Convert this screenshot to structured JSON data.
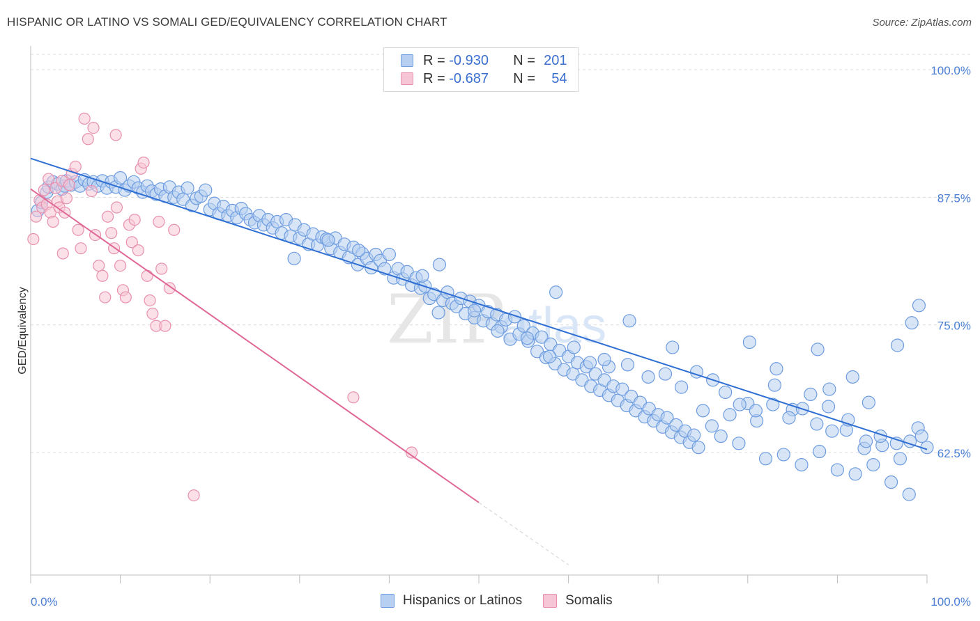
{
  "header": {
    "title": "HISPANIC OR LATINO VS SOMALI GED/EQUIVALENCY CORRELATION CHART",
    "source": "Source: ZipAtlas.com"
  },
  "legend": {
    "r_label": "R =",
    "n_label": "N =",
    "series": [
      {
        "name": "Hispanics or Latinos",
        "r": "-0.930",
        "n": "201",
        "fill": "#b7cff0",
        "stroke": "#6d9ce0"
      },
      {
        "name": "Somalis",
        "r": "-0.687",
        "n": "54",
        "fill": "#f7c6d6",
        "stroke": "#e891ae"
      }
    ]
  },
  "watermark": {
    "zip": "ZIP",
    "atlas": "atlas"
  },
  "colors": {
    "blue_line": "#2f6fd3",
    "pink_line": "#e06896",
    "grid": "#dcdcdc",
    "tick_text": "#4a7fd6"
  },
  "chart_data": {
    "type": "scatter",
    "title": "HISPANIC OR LATINO VS SOMALI GED/EQUIVALENCY CORRELATION CHART",
    "xlabel": "",
    "ylabel": "GED/Equivalency",
    "xlim": [
      0,
      100
    ],
    "ylim": [
      50.5,
      101.5
    ],
    "x_tick_labels": [
      "0.0%",
      "100.0%"
    ],
    "y_ticks": [
      100.0,
      87.5,
      75.0,
      62.5
    ],
    "y_tick_labels": [
      "100.0%",
      "87.5%",
      "75.0%",
      "62.5%"
    ],
    "grid": true,
    "legend_position": "top-center",
    "series": [
      {
        "name": "Hispanics or Latinos",
        "color": "#6d9ce0",
        "trend": {
          "x": [
            0,
            100
          ],
          "y": [
            91.3,
            62.8
          ]
        },
        "points": [
          [
            0.8,
            86.2
          ],
          [
            1.2,
            87.0
          ],
          [
            1.8,
            88.0
          ],
          [
            2.0,
            88.5
          ],
          [
            2.5,
            89.0
          ],
          [
            3.0,
            88.8
          ],
          [
            3.5,
            88.3
          ],
          [
            3.8,
            88.6
          ],
          [
            4.0,
            89.1
          ],
          [
            4.5,
            88.7
          ],
          [
            5.0,
            89.0
          ],
          [
            5.5,
            88.6
          ],
          [
            6.0,
            89.2
          ],
          [
            6.5,
            88.8
          ],
          [
            7.0,
            89.0
          ],
          [
            7.5,
            88.6
          ],
          [
            8.0,
            89.1
          ],
          [
            8.5,
            88.4
          ],
          [
            9.0,
            89.0
          ],
          [
            9.5,
            88.5
          ],
          [
            10.0,
            89.4
          ],
          [
            10.5,
            88.2
          ],
          [
            11.0,
            88.6
          ],
          [
            11.5,
            89.0
          ],
          [
            12.0,
            88.4
          ],
          [
            12.5,
            88.0
          ],
          [
            13.0,
            88.6
          ],
          [
            13.5,
            88.1
          ],
          [
            14.0,
            87.8
          ],
          [
            14.5,
            88.3
          ],
          [
            15.0,
            87.6
          ],
          [
            15.5,
            88.5
          ],
          [
            16.0,
            87.5
          ],
          [
            16.5,
            88.0
          ],
          [
            17.0,
            87.3
          ],
          [
            17.5,
            88.4
          ],
          [
            18.0,
            86.7
          ],
          [
            18.5,
            87.4
          ],
          [
            19.0,
            87.6
          ],
          [
            19.5,
            88.2
          ],
          [
            20.0,
            86.3
          ],
          [
            20.5,
            86.9
          ],
          [
            21.0,
            85.9
          ],
          [
            21.5,
            86.6
          ],
          [
            22.0,
            85.7
          ],
          [
            22.5,
            86.2
          ],
          [
            23.0,
            85.5
          ],
          [
            23.5,
            86.4
          ],
          [
            24.0,
            85.9
          ],
          [
            24.5,
            85.3
          ],
          [
            25.0,
            85.0
          ],
          [
            25.5,
            85.7
          ],
          [
            26.0,
            84.8
          ],
          [
            26.5,
            85.3
          ],
          [
            27.0,
            84.5
          ],
          [
            27.5,
            85.1
          ],
          [
            28.0,
            84.0
          ],
          [
            28.5,
            85.3
          ],
          [
            29.0,
            83.7
          ],
          [
            29.5,
            84.8
          ],
          [
            30.0,
            83.5
          ],
          [
            30.5,
            84.3
          ],
          [
            31.0,
            82.9
          ],
          [
            31.5,
            83.9
          ],
          [
            32.0,
            82.8
          ],
          [
            32.5,
            83.6
          ],
          [
            33.0,
            83.4
          ],
          [
            33.5,
            82.5
          ],
          [
            34.0,
            83.5
          ],
          [
            34.5,
            82.1
          ],
          [
            35.0,
            82.9
          ],
          [
            35.5,
            81.6
          ],
          [
            36.0,
            82.6
          ],
          [
            36.5,
            80.9
          ],
          [
            37.0,
            82.0
          ],
          [
            37.5,
            81.5
          ],
          [
            38.0,
            80.6
          ],
          [
            38.5,
            81.9
          ],
          [
            39.0,
            81.3
          ],
          [
            39.5,
            80.5
          ],
          [
            40.0,
            81.9
          ],
          [
            40.5,
            79.6
          ],
          [
            41.0,
            80.5
          ],
          [
            41.5,
            79.5
          ],
          [
            42.0,
            80.2
          ],
          [
            42.5,
            78.9
          ],
          [
            43.0,
            79.6
          ],
          [
            43.5,
            78.6
          ],
          [
            44.0,
            78.8
          ],
          [
            44.5,
            77.6
          ],
          [
            45.0,
            78.0
          ],
          [
            45.5,
            76.2
          ],
          [
            46.0,
            77.4
          ],
          [
            46.5,
            78.2
          ],
          [
            47.0,
            77.1
          ],
          [
            47.5,
            76.8
          ],
          [
            48.0,
            77.6
          ],
          [
            48.5,
            76.1
          ],
          [
            49.0,
            77.3
          ],
          [
            49.5,
            75.7
          ],
          [
            50.0,
            76.9
          ],
          [
            50.5,
            75.4
          ],
          [
            51.0,
            76.3
          ],
          [
            51.5,
            75.1
          ],
          [
            52.0,
            76.0
          ],
          [
            52.5,
            74.8
          ],
          [
            53.0,
            75.5
          ],
          [
            53.5,
            73.6
          ],
          [
            54.0,
            75.8
          ],
          [
            54.5,
            74.1
          ],
          [
            55.0,
            74.9
          ],
          [
            55.5,
            73.4
          ],
          [
            56.0,
            74.2
          ],
          [
            56.5,
            72.4
          ],
          [
            57.0,
            73.8
          ],
          [
            57.5,
            71.8
          ],
          [
            58.0,
            73.1
          ],
          [
            58.5,
            71.2
          ],
          [
            59.0,
            72.5
          ],
          [
            59.5,
            70.6
          ],
          [
            60.0,
            71.9
          ],
          [
            60.5,
            70.2
          ],
          [
            61.0,
            71.3
          ],
          [
            61.5,
            69.6
          ],
          [
            62.0,
            70.9
          ],
          [
            62.5,
            69.0
          ],
          [
            63.0,
            70.2
          ],
          [
            63.5,
            68.6
          ],
          [
            64.0,
            69.6
          ],
          [
            64.5,
            68.1
          ],
          [
            65.0,
            69.0
          ],
          [
            65.5,
            67.6
          ],
          [
            66.0,
            68.7
          ],
          [
            66.5,
            67.1
          ],
          [
            67.0,
            68.0
          ],
          [
            67.5,
            66.6
          ],
          [
            68.0,
            67.4
          ],
          [
            68.5,
            66.0
          ],
          [
            69.0,
            66.8
          ],
          [
            69.5,
            65.6
          ],
          [
            70.0,
            66.2
          ],
          [
            70.5,
            65.0
          ],
          [
            71.0,
            65.9
          ],
          [
            71.5,
            64.5
          ],
          [
            72.0,
            65.2
          ],
          [
            72.5,
            64.0
          ],
          [
            73.0,
            64.6
          ],
          [
            73.5,
            63.5
          ],
          [
            74.0,
            64.2
          ],
          [
            74.5,
            63.0
          ],
          [
            75.0,
            66.6
          ],
          [
            76.0,
            65.1
          ],
          [
            77.0,
            64.1
          ],
          [
            78.0,
            66.2
          ],
          [
            79.0,
            63.4
          ],
          [
            80.0,
            67.3
          ],
          [
            81.0,
            65.6
          ],
          [
            82.0,
            61.9
          ],
          [
            83.0,
            69.1
          ],
          [
            84.0,
            62.3
          ],
          [
            85.0,
            66.7
          ],
          [
            86.0,
            61.3
          ],
          [
            87.0,
            68.2
          ],
          [
            88.0,
            62.6
          ],
          [
            89.0,
            67.0
          ],
          [
            90.0,
            60.8
          ],
          [
            91.0,
            64.7
          ],
          [
            92.0,
            60.4
          ],
          [
            93.0,
            62.9
          ],
          [
            94.0,
            61.3
          ],
          [
            95.0,
            63.2
          ],
          [
            96.0,
            59.6
          ],
          [
            97.0,
            61.9
          ],
          [
            98.0,
            58.4
          ],
          [
            99.0,
            64.9
          ],
          [
            100.0,
            63.0
          ],
          [
            29.4,
            81.5
          ],
          [
            36.6,
            82.3
          ],
          [
            43.7,
            79.8
          ],
          [
            49.5,
            76.4
          ],
          [
            52.1,
            74.4
          ],
          [
            55.4,
            73.7
          ],
          [
            57.9,
            71.9
          ],
          [
            60.6,
            72.8
          ],
          [
            62.4,
            71.3
          ],
          [
            64.5,
            70.9
          ],
          [
            66.6,
            71.1
          ],
          [
            68.9,
            69.9
          ],
          [
            70.8,
            70.2
          ],
          [
            72.6,
            68.9
          ],
          [
            74.3,
            70.4
          ],
          [
            76.1,
            69.6
          ],
          [
            77.5,
            68.4
          ],
          [
            79.1,
            67.2
          ],
          [
            80.9,
            66.6
          ],
          [
            82.8,
            67.2
          ],
          [
            84.6,
            65.9
          ],
          [
            86.1,
            66.8
          ],
          [
            87.7,
            65.3
          ],
          [
            89.4,
            64.6
          ],
          [
            91.2,
            65.7
          ],
          [
            93.2,
            63.6
          ],
          [
            94.8,
            64.1
          ],
          [
            96.6,
            63.4
          ],
          [
            98.1,
            63.6
          ],
          [
            99.4,
            64.1
          ],
          [
            33.2,
            83.3
          ],
          [
            45.6,
            80.9
          ],
          [
            58.6,
            78.2
          ],
          [
            66.8,
            75.4
          ],
          [
            80.2,
            73.3
          ],
          [
            87.8,
            72.6
          ],
          [
            91.7,
            69.9
          ],
          [
            96.7,
            73.0
          ],
          [
            99.1,
            76.9
          ],
          [
            98.3,
            75.2
          ],
          [
            64.0,
            71.6
          ],
          [
            71.6,
            72.8
          ],
          [
            83.2,
            70.7
          ],
          [
            89.1,
            68.7
          ],
          [
            93.5,
            67.4
          ]
        ]
      },
      {
        "name": "Somalis",
        "color": "#e891ae",
        "trend": {
          "x": [
            0,
            50
          ],
          "y": [
            88.3,
            57.6
          ]
        },
        "trend_dashed": {
          "x": [
            50,
            60
          ],
          "y": [
            57.6,
            51.5
          ]
        },
        "points": [
          [
            0.3,
            83.4
          ],
          [
            0.6,
            85.6
          ],
          [
            1.0,
            87.2
          ],
          [
            1.3,
            86.5
          ],
          [
            1.5,
            88.2
          ],
          [
            1.8,
            86.8
          ],
          [
            2.0,
            89.3
          ],
          [
            2.2,
            86.0
          ],
          [
            2.5,
            85.1
          ],
          [
            2.8,
            88.4
          ],
          [
            3.0,
            87.1
          ],
          [
            3.2,
            86.5
          ],
          [
            3.5,
            89.1
          ],
          [
            3.8,
            86.0
          ],
          [
            4.0,
            87.4
          ],
          [
            4.3,
            88.7
          ],
          [
            4.6,
            89.8
          ],
          [
            5.0,
            90.5
          ],
          [
            5.3,
            84.3
          ],
          [
            5.6,
            82.5
          ],
          [
            6.0,
            95.2
          ],
          [
            6.4,
            93.2
          ],
          [
            6.8,
            88.1
          ],
          [
            7.2,
            83.8
          ],
          [
            7.6,
            80.8
          ],
          [
            8.0,
            79.8
          ],
          [
            8.3,
            77.7
          ],
          [
            8.6,
            85.6
          ],
          [
            9.0,
            84.0
          ],
          [
            9.3,
            82.5
          ],
          [
            9.6,
            86.5
          ],
          [
            10.0,
            80.8
          ],
          [
            10.3,
            78.4
          ],
          [
            10.6,
            77.7
          ],
          [
            11.0,
            84.8
          ],
          [
            11.3,
            83.1
          ],
          [
            11.6,
            85.3
          ],
          [
            12.0,
            82.3
          ],
          [
            12.3,
            90.3
          ],
          [
            12.6,
            90.9
          ],
          [
            13.0,
            79.8
          ],
          [
            13.3,
            77.4
          ],
          [
            13.6,
            76.1
          ],
          [
            14.0,
            74.9
          ],
          [
            14.3,
            85.1
          ],
          [
            14.6,
            80.5
          ],
          [
            15.0,
            74.9
          ],
          [
            15.5,
            78.6
          ],
          [
            16.0,
            84.3
          ],
          [
            3.6,
            82.0
          ],
          [
            7.0,
            94.3
          ],
          [
            9.5,
            93.6
          ],
          [
            36.0,
            67.9
          ],
          [
            42.5,
            62.5
          ],
          [
            18.2,
            58.3
          ]
        ]
      }
    ]
  }
}
